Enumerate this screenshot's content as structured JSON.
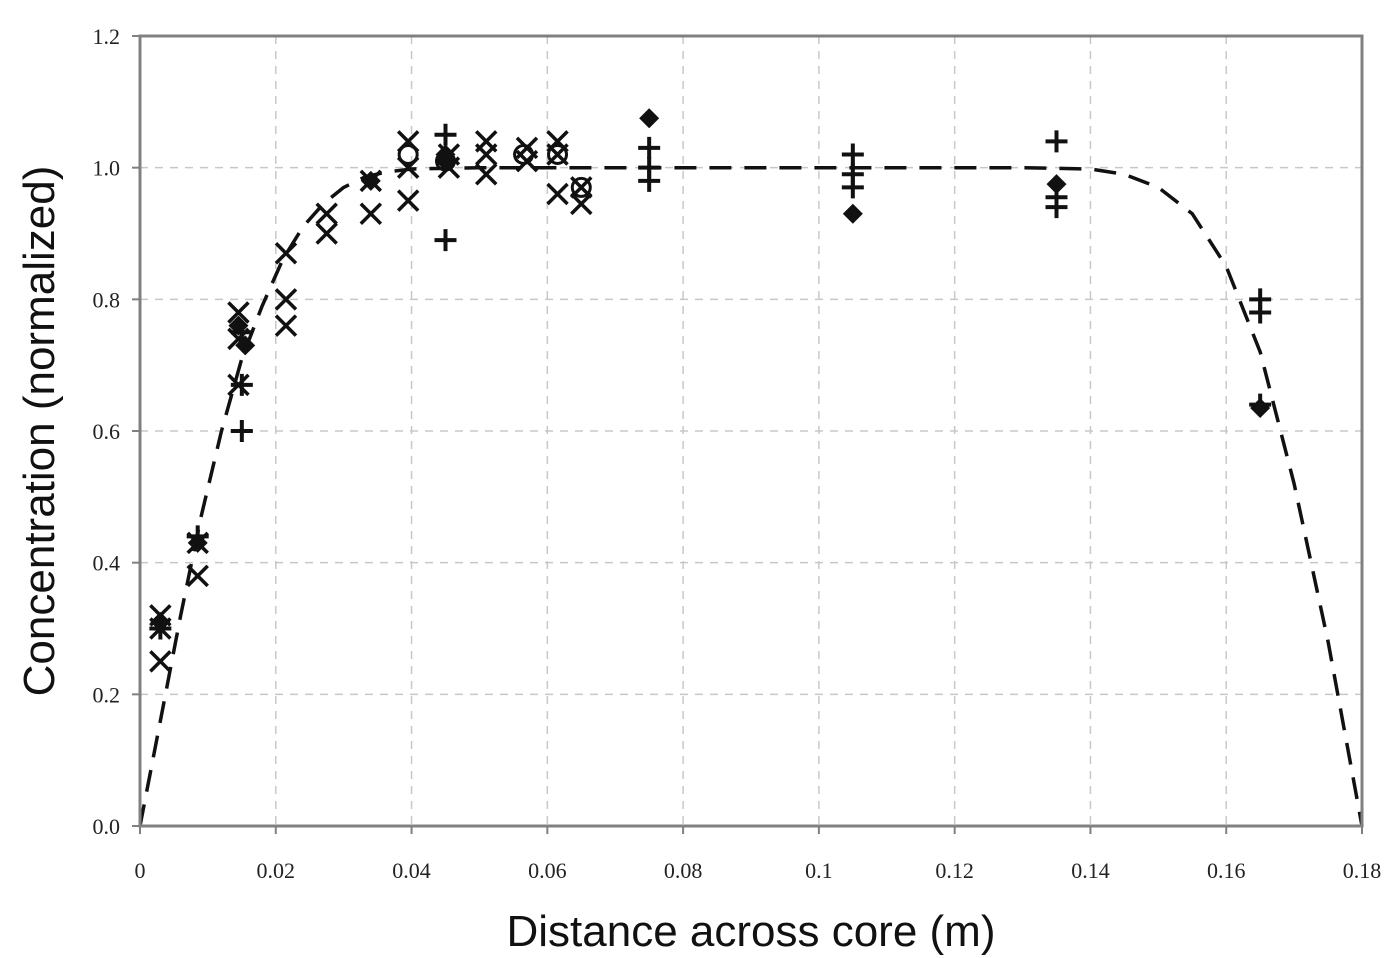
{
  "chart_data": {
    "type": "scatter",
    "title": "",
    "xlabel": "Distance across core (m)",
    "ylabel": "Concentration (normalized)",
    "xlim": [
      0,
      0.18
    ],
    "ylim": [
      0,
      1.2
    ],
    "x_ticks": [
      0,
      0.02,
      0.04,
      0.06,
      0.08,
      0.1,
      0.12,
      0.14,
      0.16,
      0.18
    ],
    "x_tick_labels": [
      "0",
      "0.02",
      "0.04",
      "0.06",
      "0.08",
      "0.1",
      "0.12",
      "0.14",
      "0.16",
      "0.18"
    ],
    "y_ticks": [
      0,
      0.2,
      0.4,
      0.6,
      0.8,
      1.0,
      1.2
    ],
    "y_tick_labels": [
      "0.0",
      "0.2",
      "0.4",
      "0.6",
      "0.8",
      "1.0",
      "1.2"
    ],
    "grid": true,
    "legend": "none",
    "series": [
      {
        "marker": "diamond",
        "points": [
          [
            0.003,
            0.31
          ],
          [
            0.0085,
            0.43
          ],
          [
            0.0145,
            0.76
          ],
          [
            0.0155,
            0.73
          ],
          [
            0.034,
            0.98
          ],
          [
            0.045,
            1.01
          ],
          [
            0.045,
            1.02
          ],
          [
            0.075,
            1.075
          ],
          [
            0.105,
            0.93
          ],
          [
            0.135,
            0.975
          ],
          [
            0.165,
            0.635
          ]
        ]
      },
      {
        "marker": "cross",
        "points": [
          [
            0.003,
            0.3
          ],
          [
            0.0085,
            0.44
          ],
          [
            0.015,
            0.6
          ],
          [
            0.015,
            0.67
          ],
          [
            0.015,
            0.75
          ],
          [
            0.045,
            0.89
          ],
          [
            0.045,
            1.05
          ],
          [
            0.075,
            0.98
          ],
          [
            0.075,
            1.0
          ],
          [
            0.075,
            1.03
          ],
          [
            0.105,
            0.97
          ],
          [
            0.105,
            0.99
          ],
          [
            0.105,
            1.02
          ],
          [
            0.135,
            0.94
          ],
          [
            0.135,
            0.955
          ],
          [
            0.135,
            1.04
          ],
          [
            0.165,
            0.64
          ],
          [
            0.165,
            0.78
          ],
          [
            0.165,
            0.8
          ]
        ]
      },
      {
        "marker": "x",
        "points": [
          [
            0.003,
            0.25
          ],
          [
            0.003,
            0.3
          ],
          [
            0.003,
            0.32
          ],
          [
            0.0085,
            0.38
          ],
          [
            0.0085,
            0.43
          ],
          [
            0.0145,
            0.67
          ],
          [
            0.0145,
            0.74
          ],
          [
            0.0145,
            0.78
          ],
          [
            0.0215,
            0.76
          ],
          [
            0.0215,
            0.8
          ],
          [
            0.0215,
            0.87
          ],
          [
            0.0275,
            0.9
          ],
          [
            0.0275,
            0.93
          ],
          [
            0.034,
            0.93
          ],
          [
            0.034,
            0.98
          ],
          [
            0.0395,
            0.95
          ],
          [
            0.0395,
            1.0
          ],
          [
            0.0395,
            1.04
          ],
          [
            0.0455,
            1.0
          ],
          [
            0.0455,
            1.02
          ],
          [
            0.051,
            0.99
          ],
          [
            0.051,
            1.02
          ],
          [
            0.051,
            1.04
          ],
          [
            0.057,
            1.01
          ],
          [
            0.057,
            1.03
          ],
          [
            0.0615,
            0.96
          ],
          [
            0.0615,
            1.02
          ],
          [
            0.0615,
            1.04
          ],
          [
            0.065,
            0.945
          ],
          [
            0.065,
            0.97
          ]
        ]
      },
      {
        "marker": "circle",
        "points": [
          [
            0.0395,
            1.02
          ],
          [
            0.045,
            1.01
          ],
          [
            0.0565,
            1.02
          ],
          [
            0.0615,
            1.02
          ],
          [
            0.065,
            0.97
          ]
        ]
      }
    ],
    "fit_curve": {
      "style": "dashed",
      "points": [
        [
          0,
          0
        ],
        [
          0.003,
          0.16
        ],
        [
          0.006,
          0.32
        ],
        [
          0.009,
          0.47
        ],
        [
          0.012,
          0.6
        ],
        [
          0.015,
          0.71
        ],
        [
          0.018,
          0.79
        ],
        [
          0.021,
          0.86
        ],
        [
          0.024,
          0.91
        ],
        [
          0.027,
          0.945
        ],
        [
          0.03,
          0.97
        ],
        [
          0.033,
          0.985
        ],
        [
          0.036,
          0.993
        ],
        [
          0.04,
          0.998
        ],
        [
          0.05,
          1.0
        ],
        [
          0.1,
          1.0
        ],
        [
          0.13,
          1.0
        ],
        [
          0.14,
          0.998
        ],
        [
          0.145,
          0.99
        ],
        [
          0.15,
          0.97
        ],
        [
          0.155,
          0.93
        ],
        [
          0.16,
          0.85
        ],
        [
          0.165,
          0.72
        ],
        [
          0.17,
          0.52
        ],
        [
          0.175,
          0.28
        ],
        [
          0.18,
          0.0
        ]
      ]
    }
  }
}
